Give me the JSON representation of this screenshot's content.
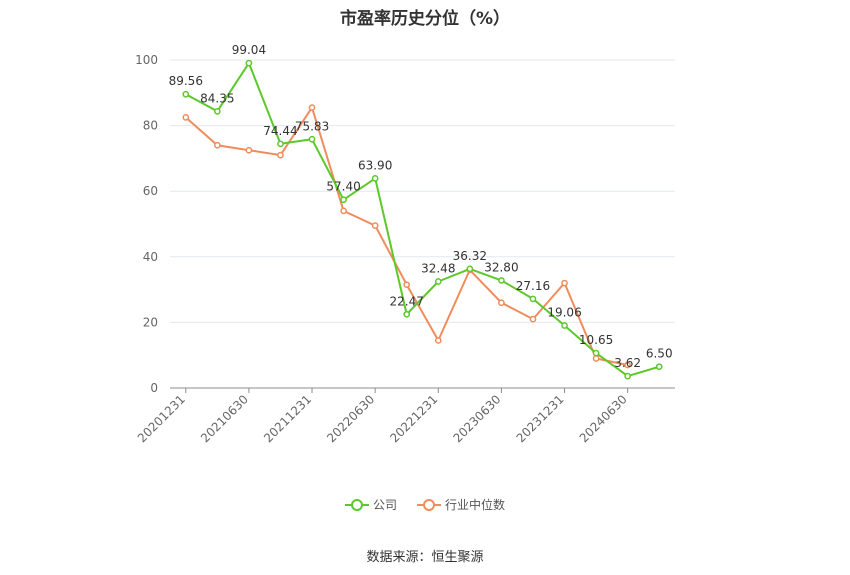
{
  "chart_data": {
    "type": "line",
    "title": "市盈率历史分位（%）",
    "source": "数据来源：恒生聚源",
    "ylim": [
      0,
      100
    ],
    "yticks": [
      0,
      20,
      40,
      60,
      80,
      100
    ],
    "x_tick_labels": [
      "20201231",
      "20210630",
      "20211231",
      "20220630",
      "20221231",
      "20230630",
      "20231231",
      "20240630"
    ],
    "x_points": 16,
    "x_tick_every": 2,
    "grid": true,
    "legend_position": "bottom",
    "series": [
      {
        "name": "公司",
        "color": "#5cc82a",
        "show_labels": true,
        "values": [
          89.56,
          84.35,
          99.04,
          74.44,
          75.83,
          57.4,
          63.9,
          22.47,
          32.48,
          36.32,
          32.8,
          27.16,
          19.06,
          10.65,
          3.62,
          6.5
        ],
        "labels": [
          "89.56",
          "84.35",
          "99.04",
          "74.44",
          "75.83",
          "57.40",
          "63.90",
          "22.47",
          "32.48",
          "36.32",
          "32.80",
          "27.16",
          "19.06",
          "10.65",
          "3.62",
          "6.50"
        ]
      },
      {
        "name": "行业中位数",
        "color": "#f08c5c",
        "show_labels": false,
        "values": [
          82.5,
          74,
          72.5,
          71,
          85.5,
          54,
          49.5,
          31.5,
          14.5,
          36,
          26,
          21,
          32,
          9,
          7,
          null
        ]
      }
    ]
  }
}
